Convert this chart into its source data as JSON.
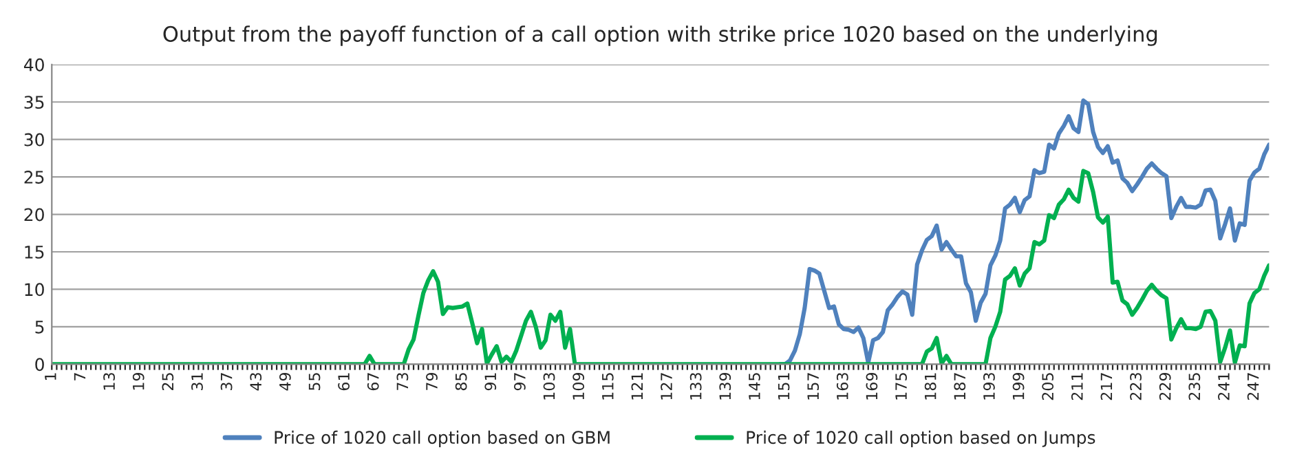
{
  "chart_data": {
    "type": "line",
    "title": "Output from the payoff function of a call option with strike price 1020 based on the underlying",
    "categories": [
      "1",
      null,
      null,
      null,
      null,
      null,
      "7",
      null,
      null,
      null,
      null,
      null,
      "13",
      null,
      null,
      null,
      null,
      null,
      "19",
      null,
      null,
      null,
      null,
      null,
      "25",
      null,
      null,
      null,
      null,
      null,
      "31",
      null,
      null,
      null,
      null,
      null,
      "37",
      null,
      null,
      null,
      null,
      null,
      "43",
      null,
      null,
      null,
      null,
      null,
      "49",
      null,
      null,
      null,
      null,
      null,
      "55",
      null,
      null,
      null,
      null,
      null,
      "61",
      null,
      null,
      null,
      null,
      null,
      "67",
      null,
      null,
      null,
      null,
      null,
      "73",
      null,
      null,
      null,
      null,
      null,
      "79",
      null,
      null,
      null,
      null,
      null,
      "85",
      null,
      null,
      null,
      null,
      null,
      "91",
      null,
      null,
      null,
      null,
      null,
      "97",
      null,
      null,
      null,
      null,
      null,
      "103",
      null,
      null,
      null,
      null,
      null,
      "109",
      null,
      null,
      null,
      null,
      null,
      "115",
      null,
      null,
      null,
      null,
      null,
      "121",
      null,
      null,
      null,
      null,
      null,
      "127",
      null,
      null,
      null,
      null,
      null,
      "133",
      null,
      null,
      null,
      null,
      null,
      "139",
      null,
      null,
      null,
      null,
      null,
      "145",
      null,
      null,
      null,
      null,
      null,
      "151",
      null,
      null,
      null,
      null,
      null,
      "157",
      null,
      null,
      null,
      null,
      null,
      "163",
      null,
      null,
      null,
      null,
      null,
      "169",
      null,
      null,
      null,
      null,
      null,
      "175",
      null,
      null,
      null,
      null,
      null,
      "181",
      null,
      null,
      null,
      null,
      null,
      "187",
      null,
      null,
      null,
      null,
      null,
      "193",
      null,
      null,
      null,
      null,
      null,
      "199",
      null,
      null,
      null,
      null,
      null,
      "205",
      null,
      null,
      null,
      null,
      null,
      "211",
      null,
      null,
      null,
      null,
      null,
      "217",
      null,
      null,
      null,
      null,
      null,
      "223",
      null,
      null,
      null,
      null,
      null,
      "229",
      null,
      null,
      null,
      null,
      null,
      "235",
      null,
      null,
      null,
      null,
      null,
      "241",
      null,
      null,
      null,
      null,
      null,
      "247",
      null,
      null,
      null
    ],
    "series": [
      {
        "name": "Price of 1020 call option based on GBM",
        "color": "#4f81bd",
        "values": [
          null,
          null,
          null,
          null,
          null,
          null,
          null,
          null,
          null,
          null,
          null,
          null,
          null,
          null,
          null,
          null,
          null,
          null,
          null,
          null,
          null,
          null,
          null,
          null,
          null,
          null,
          null,
          null,
          null,
          null,
          null,
          null,
          null,
          null,
          null,
          null,
          null,
          null,
          null,
          null,
          null,
          null,
          null,
          null,
          null,
          null,
          null,
          null,
          null,
          null,
          null,
          null,
          null,
          null,
          null,
          null,
          null,
          null,
          null,
          null,
          null,
          null,
          null,
          null,
          null,
          null,
          null,
          null,
          null,
          null,
          null,
          null,
          null,
          null,
          null,
          null,
          null,
          null,
          null,
          null,
          null,
          null,
          null,
          null,
          null,
          null,
          null,
          null,
          null,
          null,
          null,
          null,
          null,
          null,
          null,
          null,
          null,
          null,
          null,
          null,
          null,
          null,
          null,
          null,
          null,
          null,
          null,
          null,
          null,
          null,
          null,
          null,
          null,
          null,
          null,
          null,
          null,
          null,
          null,
          null,
          null,
          null,
          null,
          null,
          null,
          null,
          null,
          null,
          null,
          null,
          null,
          null,
          null,
          null,
          null,
          null,
          null,
          null,
          null,
          null,
          null,
          null,
          null,
          null,
          null,
          null,
          null,
          null,
          null,
          0,
          0,
          0.5,
          1.8,
          4,
          7.5,
          12.7,
          12.5,
          12.1,
          9.8,
          7.5,
          7.7,
          5.3,
          4.7,
          4.6,
          4.3,
          4.9,
          3.5,
          0.2,
          3.2,
          3.5,
          4.3,
          7.2,
          8,
          9,
          9.7,
          9.3,
          6.6,
          13.3,
          15.2,
          16.6,
          17.1,
          18.5,
          15.3,
          16.3,
          15.3,
          14.4,
          14.4,
          10.8,
          9.6,
          5.8,
          8.2,
          9.4,
          13.2,
          14.5,
          16.5,
          20.8,
          21.3,
          22.2,
          20.3,
          21.9,
          22.4,
          25.9,
          25.5,
          25.7,
          29.3,
          28.8,
          30.8,
          31.8,
          33.1,
          31.5,
          31,
          35.2,
          34.7,
          31,
          29,
          28.2,
          29.1,
          26.9,
          27.2,
          24.8,
          24.2,
          23.1,
          24,
          25,
          26.1,
          26.8,
          26.1,
          25.5,
          25.1,
          19.5,
          21,
          22.2,
          21,
          21,
          20.9,
          21.3,
          23.2,
          23.3,
          21.8,
          16.8,
          18.7,
          20.8,
          16.5,
          18.8,
          18.6,
          24.5,
          25.6,
          26.1,
          28,
          29.3
        ]
      },
      {
        "name": "Price of 1020 call option based on Jumps",
        "color": "#00b050",
        "values": [
          0,
          0,
          0,
          0,
          0,
          0,
          0,
          0,
          0,
          0,
          0,
          0,
          0,
          0,
          0,
          0,
          0,
          0,
          0,
          0,
          0,
          0,
          0,
          0,
          0,
          0,
          0,
          0,
          0,
          0,
          0,
          0,
          0,
          0,
          0,
          0,
          0,
          0,
          0,
          0,
          0,
          0,
          0,
          0,
          0,
          0,
          0,
          0,
          0,
          0,
          0,
          0,
          0,
          0,
          0,
          0,
          0,
          0,
          0,
          0,
          0,
          0,
          0,
          0,
          0,
          1.1,
          0,
          0,
          0,
          0,
          0,
          0,
          0,
          2,
          3.3,
          6.5,
          9.5,
          11.2,
          12.4,
          11,
          6.7,
          7.6,
          7.5,
          7.6,
          7.7,
          8.1,
          5.5,
          2.8,
          4.7,
          0.1,
          1.3,
          2.4,
          0.3,
          1,
          0.3,
          1.8,
          3.8,
          5.8,
          7,
          5,
          2.2,
          3.2,
          6.6,
          5.8,
          7,
          2.2,
          4.7,
          0,
          0,
          0,
          0,
          0,
          0,
          0,
          0,
          0,
          0,
          0,
          0,
          0,
          0,
          0,
          0,
          0,
          0,
          0,
          0,
          0,
          0,
          0,
          0,
          0,
          0,
          0,
          0,
          0,
          0,
          0,
          0,
          0,
          0,
          0,
          0,
          0,
          0,
          0,
          0,
          0,
          0,
          0,
          0,
          0,
          0,
          0,
          0,
          0,
          0,
          0,
          0,
          0,
          0,
          0,
          0,
          0,
          0,
          0,
          0,
          0,
          0,
          0,
          0,
          0,
          0,
          0,
          0,
          0,
          0,
          0,
          0,
          1.7,
          2.1,
          3.5,
          0.1,
          1.1,
          0,
          0,
          0,
          0,
          0,
          0,
          0,
          0,
          3.5,
          5,
          7,
          11.3,
          11.8,
          12.8,
          10.5,
          12.1,
          12.8,
          16.3,
          16,
          16.5,
          19.9,
          19.5,
          21.3,
          22,
          23.3,
          22.2,
          21.7,
          25.8,
          25.5,
          23,
          19.6,
          18.9,
          19.7,
          10.9,
          11,
          8.5,
          8,
          6.6,
          7.5,
          8.6,
          9.8,
          10.6,
          9.8,
          9.2,
          8.8,
          3.3,
          4.8,
          6,
          4.8,
          4.8,
          4.7,
          5,
          7,
          7.1,
          5.8,
          0.3,
          2.2,
          4.5,
          0.2,
          2.5,
          2.4,
          8.1,
          9.5,
          10,
          11.8,
          13.2
        ]
      }
    ],
    "ylim": [
      0,
      40
    ],
    "yticks": [
      0,
      5,
      10,
      15,
      20,
      25,
      30,
      35,
      40
    ],
    "grid": "y",
    "legend": "bottom",
    "marker": "none",
    "line_style": "solid"
  }
}
